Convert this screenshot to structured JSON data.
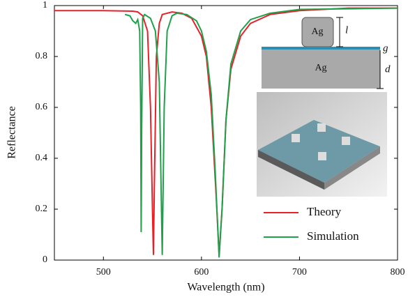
{
  "chart_data": {
    "type": "line",
    "xlabel": "Wavelength (nm)",
    "ylabel": "Reflectance",
    "xlim": [
      450,
      800
    ],
    "ylim": [
      0,
      1
    ],
    "xticks": [
      500,
      600,
      700,
      800
    ],
    "yticks": [
      0,
      0.2,
      0.4,
      0.6,
      0.8,
      1
    ],
    "legend": "lower right",
    "series": [
      {
        "name": "Theory",
        "color": "#e8202a",
        "x": [
          450,
          500,
          530,
          535,
          540,
          545,
          548,
          550,
          551,
          552,
          554,
          557,
          560,
          570,
          580,
          590,
          600,
          605,
          610,
          615,
          618,
          621,
          625,
          630,
          640,
          650,
          670,
          700,
          750,
          800
        ],
        "values": [
          0.98,
          0.98,
          0.978,
          0.975,
          0.96,
          0.9,
          0.6,
          0.2,
          0.02,
          0.3,
          0.8,
          0.93,
          0.965,
          0.975,
          0.97,
          0.95,
          0.88,
          0.8,
          0.6,
          0.25,
          0.02,
          0.2,
          0.55,
          0.75,
          0.88,
          0.93,
          0.965,
          0.98,
          0.99,
          0.99
        ]
      },
      {
        "name": "Simulation",
        "color": "#1fa04a",
        "x": [
          522,
          527,
          530,
          533,
          535,
          537,
          538,
          538.5,
          539,
          540,
          542,
          548,
          553,
          557,
          560,
          562,
          565,
          570,
          575,
          585,
          595,
          600,
          605,
          610,
          614,
          618,
          621,
          625,
          630,
          640,
          650,
          670,
          700,
          800
        ],
        "values": [
          0.965,
          0.96,
          0.94,
          0.93,
          0.945,
          0.9,
          0.6,
          0.11,
          0.5,
          0.95,
          0.965,
          0.95,
          0.9,
          0.7,
          0.02,
          0.6,
          0.9,
          0.96,
          0.97,
          0.965,
          0.94,
          0.9,
          0.82,
          0.65,
          0.35,
          0.01,
          0.2,
          0.55,
          0.77,
          0.9,
          0.945,
          0.97,
          0.985,
          0.99
        ]
      }
    ],
    "annotations": [
      "Ag",
      "Ag",
      "l",
      "g",
      "d"
    ]
  }
}
